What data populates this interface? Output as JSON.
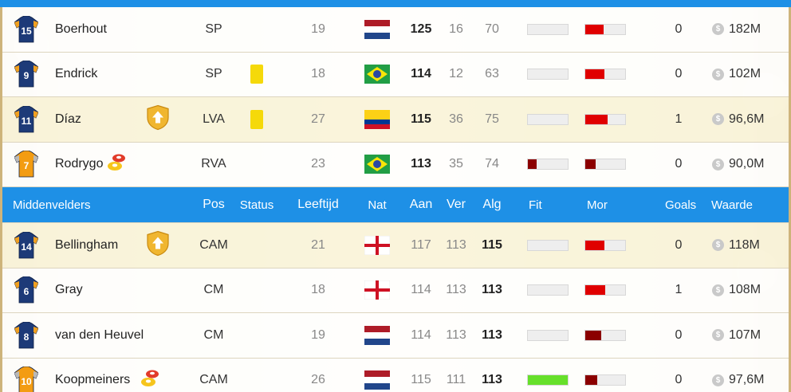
{
  "attackers": [
    {
      "number": "15",
      "shirt": "blue",
      "name": "Boerhout",
      "badge": "",
      "pos": "SP",
      "status": "",
      "age": "19",
      "nat": "NL",
      "aan": "125",
      "ver": "16",
      "alg": "70",
      "bold": "aan",
      "fit": 0.0,
      "fit_color": "#eeeeee",
      "mor": 0.45,
      "mor_color": "#e00000",
      "goals": "0",
      "waarde": "182M",
      "bg": "white"
    },
    {
      "number": "9",
      "shirt": "blue",
      "name": "Endrick",
      "badge": "",
      "pos": "SP",
      "status": "yellow-card",
      "age": "18",
      "nat": "BR",
      "aan": "114",
      "ver": "12",
      "alg": "63",
      "bold": "aan",
      "fit": 0.0,
      "fit_color": "#eeeeee",
      "mor": 0.48,
      "mor_color": "#e00000",
      "goals": "0",
      "waarde": "102M",
      "bg": "white"
    },
    {
      "number": "11",
      "shirt": "blue",
      "name": "Díaz",
      "badge": "upgrade",
      "pos": "LVA",
      "status": "yellow-card",
      "age": "27",
      "nat": "CO",
      "aan": "115",
      "ver": "36",
      "alg": "75",
      "bold": "aan",
      "fit": 0.0,
      "fit_color": "#eeeeee",
      "mor": 0.55,
      "mor_color": "#e00000",
      "goals": "1",
      "waarde": "96,6M",
      "bg": "cream"
    },
    {
      "number": "7",
      "shirt": "orange",
      "name": "Rodrygo",
      "badge": "training",
      "pos": "RVA",
      "status": "",
      "age": "23",
      "nat": "BR",
      "aan": "113",
      "ver": "35",
      "alg": "74",
      "bold": "aan",
      "fit": 0.22,
      "fit_color": "#8b0000",
      "mor": 0.25,
      "mor_color": "#8b0000",
      "goals": "0",
      "waarde": "90,0M",
      "bg": "white"
    }
  ],
  "midfield_header": {
    "group": "Middenvelders",
    "pos": "Pos",
    "status": "Status",
    "age": "Leeftijd",
    "nat": "Nat",
    "aan": "Aan",
    "ver": "Ver",
    "alg": "Alg",
    "fit": "Fit",
    "mor": "Mor",
    "goals": "Goals",
    "waarde": "Waarde"
  },
  "midfielders": [
    {
      "number": "14",
      "shirt": "blue",
      "name": "Bellingham",
      "badge": "upgrade",
      "pos": "CAM",
      "status": "",
      "age": "21",
      "nat": "EN",
      "aan": "117",
      "ver": "113",
      "alg": "115",
      "bold": "alg",
      "fit": 0.0,
      "fit_color": "#eeeeee",
      "mor": 0.48,
      "mor_color": "#e00000",
      "goals": "0",
      "waarde": "118M",
      "bg": "cream"
    },
    {
      "number": "6",
      "shirt": "blue",
      "name": "Gray",
      "badge": "",
      "pos": "CM",
      "status": "",
      "age": "18",
      "nat": "EN",
      "aan": "114",
      "ver": "113",
      "alg": "113",
      "bold": "alg",
      "fit": 0.0,
      "fit_color": "#eeeeee",
      "mor": 0.5,
      "mor_color": "#e00000",
      "goals": "1",
      "waarde": "108M",
      "bg": "white"
    },
    {
      "number": "8",
      "shirt": "blue",
      "name": "van den Heuvel",
      "badge": "",
      "pos": "CM",
      "status": "",
      "age": "19",
      "nat": "NL",
      "aan": "114",
      "ver": "113",
      "alg": "113",
      "bold": "alg",
      "fit": 0.0,
      "fit_color": "#eeeeee",
      "mor": 0.4,
      "mor_color": "#8b0000",
      "goals": "0",
      "waarde": "107M",
      "bg": "white"
    },
    {
      "number": "10",
      "shirt": "orange",
      "name": "Koopmeiners",
      "badge": "training",
      "pos": "CAM",
      "status": "",
      "age": "26",
      "nat": "NL",
      "aan": "115",
      "ver": "111",
      "alg": "113",
      "bold": "alg",
      "fit": 1.0,
      "fit_color": "#66e02a",
      "mor": 0.3,
      "mor_color": "#8b0000",
      "goals": "0",
      "waarde": "97,6M",
      "bg": "white"
    }
  ],
  "colors": {
    "header_blue": "#1e90e6",
    "shirt_blue": "#1d3a78",
    "shirt_orange": "#f39c12",
    "badge_gold": "#f0b630",
    "card_yellow": "#f5d90a"
  }
}
